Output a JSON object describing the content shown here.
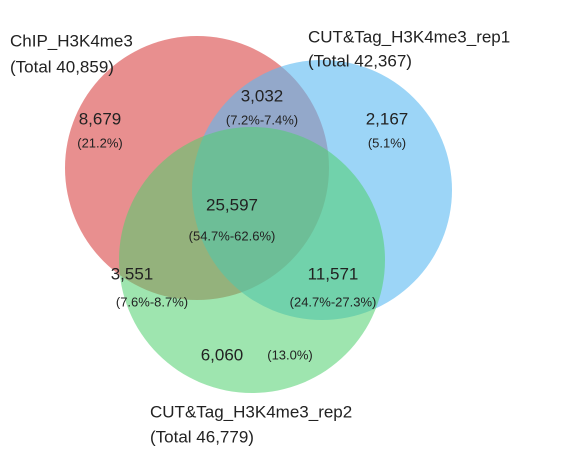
{
  "sets": [
    {
      "label": "ChIP_H3K4me3",
      "total": "(Total 40,859)"
    },
    {
      "label": "CUT&Tag_H3K4me3_rep1",
      "total": "(Total 42,367)"
    },
    {
      "label": "CUT&Tag_H3K4me3_rep2",
      "total": "(Total 46,779)"
    }
  ],
  "regions": [
    {
      "count": "8,679",
      "percent": "(21.2%)"
    },
    {
      "count": "3,032",
      "percent": "(7.2%-7.4%)"
    },
    {
      "count": "2,167",
      "percent": "(5.1%)"
    },
    {
      "count": "25,597",
      "percent": "(54.7%-62.6%)"
    },
    {
      "count": "3,551",
      "percent": "(7.6%-8.7%)"
    },
    {
      "count": "11,571",
      "percent": "(24.7%-27.3%)"
    },
    {
      "count": "6,060",
      "percent": "(13.0%)"
    }
  ]
}
